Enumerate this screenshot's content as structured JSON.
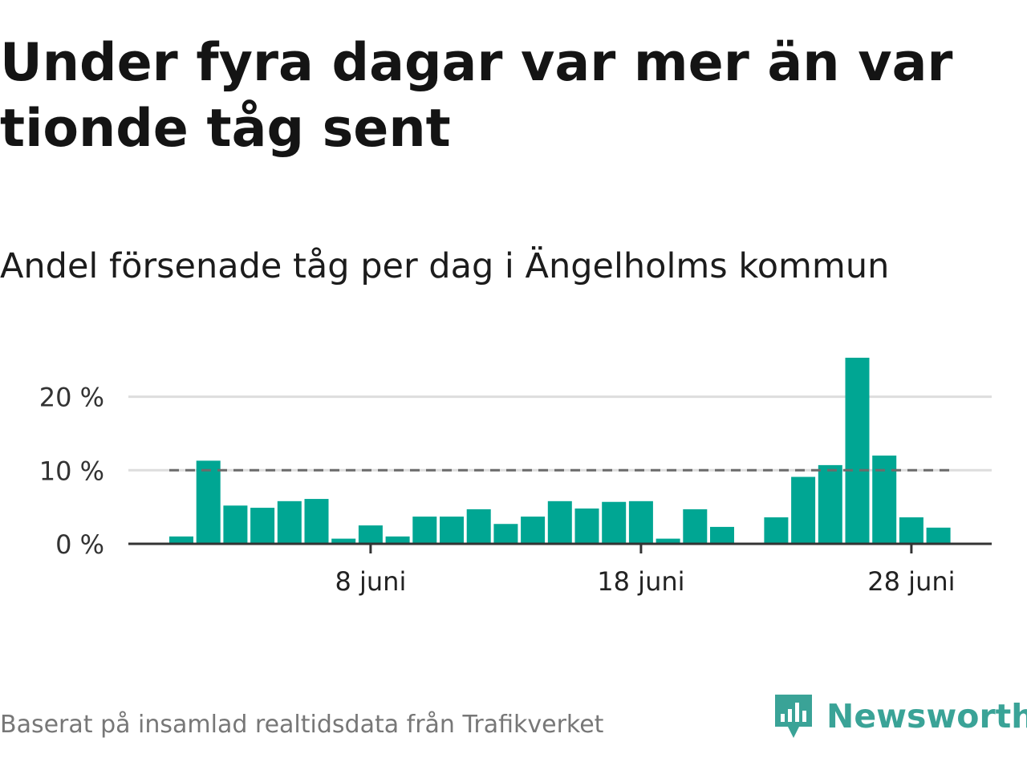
{
  "title": "Under fyra dagar var mer än var tionde tåg sent",
  "subtitle": "Andel försenade tåg per dag i Ängelholms kommun",
  "source": "Baserat på insamlad realtidsdata från Trafikverket",
  "brand": {
    "name": "Newsworthy",
    "logo_icon": "bar-chart-speech-bubble-icon"
  },
  "colors": {
    "bar": "#00a693",
    "reference_line": "#6b6b6b",
    "grid": "#dddddd",
    "axis": "#333333",
    "brand": "#3aa397"
  },
  "chart_data": {
    "type": "bar",
    "x": [
      "1 juni",
      "2 juni",
      "3 juni",
      "4 juni",
      "5 juni",
      "6 juni",
      "7 juni",
      "8 juni",
      "9 juni",
      "10 juni",
      "11 juni",
      "12 juni",
      "13 juni",
      "14 juni",
      "15 juni",
      "16 juni",
      "17 juni",
      "18 juni",
      "19 juni",
      "20 juni",
      "21 juni",
      "22 juni",
      "23 juni",
      "24 juni",
      "25 juni",
      "26 juni",
      "27 juni",
      "28 juni",
      "29 juni"
    ],
    "values": [
      1.0,
      11.3,
      5.2,
      4.9,
      5.8,
      6.1,
      0.7,
      2.5,
      1.0,
      3.7,
      3.7,
      4.7,
      2.7,
      3.7,
      5.8,
      4.8,
      5.7,
      5.8,
      0.7,
      4.7,
      2.3,
      null,
      3.6,
      9.1,
      10.7,
      25.3,
      12.0,
      3.6,
      2.2
    ],
    "reference_line": {
      "value": 10
    },
    "y_ticks": [
      {
        "value": 0,
        "label": "0 %"
      },
      {
        "value": 10,
        "label": "10 %"
      },
      {
        "value": 20,
        "label": "20 %"
      }
    ],
    "x_ticks": [
      {
        "value": "8 juni",
        "label": "8 juni"
      },
      {
        "value": "18 juni",
        "label": "18 juni"
      },
      {
        "value": "28 juni",
        "label": "28 juni"
      }
    ],
    "ylim": [
      0,
      26
    ],
    "grid": true,
    "xlabel": "",
    "ylabel": ""
  }
}
